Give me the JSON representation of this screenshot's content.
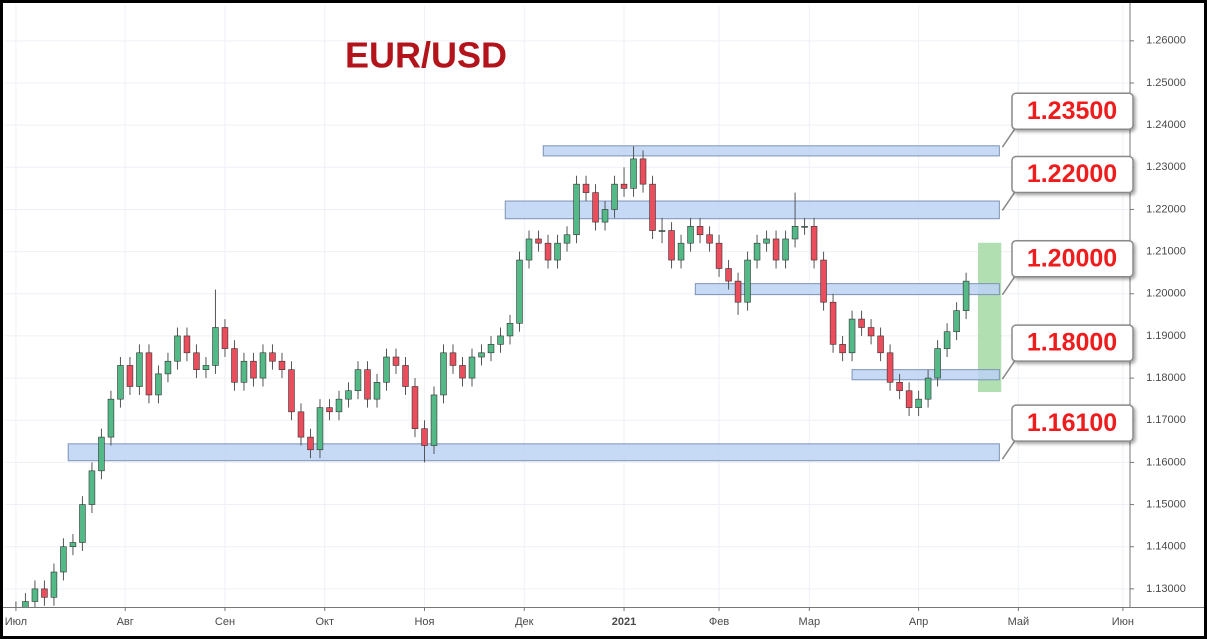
{
  "chart_data": {
    "type": "candlestick",
    "title": "EUR/USD",
    "up_color": "#53b987",
    "down_color": "#eb4d5c",
    "x": [
      0,
      2,
      4,
      6,
      8,
      10,
      12,
      14,
      16,
      18,
      20,
      22,
      24,
      26,
      28,
      30,
      32,
      34,
      36,
      38,
      40,
      42,
      44,
      46,
      48,
      50,
      52,
      54,
      56,
      58,
      60,
      62,
      64,
      66,
      68,
      70,
      72,
      74,
      76,
      78,
      80,
      82,
      84,
      86,
      88,
      90,
      92,
      94,
      96,
      98,
      100,
      102,
      104,
      106,
      108,
      110,
      112,
      114,
      116,
      118,
      120,
      122,
      124,
      126,
      128,
      130,
      132,
      134,
      136,
      138,
      140,
      142,
      144,
      146,
      148,
      150,
      152,
      154,
      156,
      158,
      160,
      162,
      164,
      166,
      168,
      170,
      172,
      174,
      176,
      178,
      180,
      182,
      184,
      186,
      188,
      190,
      192,
      194,
      196,
      198,
      200
    ],
    "open": [
      1.124,
      1.125,
      1.127,
      1.13,
      1.128,
      1.134,
      1.14,
      1.141,
      1.15,
      1.158,
      1.166,
      1.175,
      1.183,
      1.178,
      1.186,
      1.176,
      1.181,
      1.184,
      1.19,
      1.186,
      1.182,
      1.183,
      1.192,
      1.187,
      1.179,
      1.184,
      1.18,
      1.186,
      1.184,
      1.182,
      1.172,
      1.166,
      1.163,
      1.173,
      1.172,
      1.175,
      1.177,
      1.182,
      1.175,
      1.179,
      1.185,
      1.183,
      1.178,
      1.168,
      1.164,
      1.176,
      1.186,
      1.183,
      1.18,
      1.185,
      1.186,
      1.188,
      1.19,
      1.193,
      1.208,
      1.213,
      1.212,
      1.208,
      1.212,
      1.214,
      1.226,
      1.224,
      1.217,
      1.22,
      1.226,
      1.225,
      1.232,
      1.226,
      1.215,
      1.215,
      1.208,
      1.212,
      1.216,
      1.214,
      1.212,
      1.206,
      1.203,
      1.198,
      1.208,
      1.212,
      1.213,
      1.208,
      1.213,
      1.216,
      1.216,
      1.208,
      1.198,
      1.188,
      1.186,
      1.194,
      1.192,
      1.19,
      1.186,
      1.179,
      1.177,
      1.173,
      1.175,
      1.18,
      1.187,
      1.191,
      1.196
    ],
    "high": [
      1.127,
      1.129,
      1.132,
      1.132,
      1.136,
      1.142,
      1.143,
      1.152,
      1.16,
      1.168,
      1.177,
      1.185,
      1.185,
      1.188,
      1.188,
      1.183,
      1.186,
      1.192,
      1.192,
      1.188,
      1.185,
      1.201,
      1.194,
      1.189,
      1.186,
      1.186,
      1.188,
      1.188,
      1.186,
      1.184,
      1.174,
      1.168,
      1.175,
      1.175,
      1.177,
      1.179,
      1.184,
      1.184,
      1.181,
      1.187,
      1.187,
      1.185,
      1.18,
      1.17,
      1.178,
      1.188,
      1.188,
      1.185,
      1.187,
      1.188,
      1.19,
      1.192,
      1.195,
      1.21,
      1.215,
      1.215,
      1.214,
      1.214,
      1.216,
      1.228,
      1.228,
      1.226,
      1.222,
      1.228,
      1.23,
      1.235,
      1.234,
      1.228,
      1.218,
      1.217,
      1.214,
      1.218,
      1.218,
      1.216,
      1.214,
      1.208,
      1.205,
      1.21,
      1.214,
      1.215,
      1.215,
      1.215,
      1.224,
      1.218,
      1.218,
      1.21,
      1.2,
      1.19,
      1.196,
      1.196,
      1.194,
      1.192,
      1.188,
      1.181,
      1.179,
      1.177,
      1.182,
      1.189,
      1.193,
      1.198,
      1.205
    ],
    "low": [
      1.122,
      1.123,
      1.125,
      1.126,
      1.126,
      1.132,
      1.138,
      1.139,
      1.148,
      1.156,
      1.164,
      1.173,
      1.176,
      1.176,
      1.174,
      1.174,
      1.179,
      1.182,
      1.184,
      1.18,
      1.18,
      1.181,
      1.185,
      1.177,
      1.177,
      1.178,
      1.178,
      1.182,
      1.18,
      1.17,
      1.164,
      1.161,
      1.161,
      1.17,
      1.17,
      1.173,
      1.175,
      1.173,
      1.173,
      1.177,
      1.181,
      1.176,
      1.166,
      1.16,
      1.162,
      1.174,
      1.181,
      1.178,
      1.178,
      1.183,
      1.184,
      1.186,
      1.188,
      1.191,
      1.206,
      1.21,
      1.206,
      1.206,
      1.21,
      1.212,
      1.222,
      1.215,
      1.215,
      1.218,
      1.223,
      1.223,
      1.224,
      1.213,
      1.212,
      1.206,
      1.206,
      1.21,
      1.212,
      1.21,
      1.204,
      1.201,
      1.195,
      1.196,
      1.206,
      1.21,
      1.206,
      1.206,
      1.211,
      1.214,
      1.206,
      1.196,
      1.186,
      1.184,
      1.184,
      1.19,
      1.188,
      1.184,
      1.177,
      1.175,
      1.171,
      1.171,
      1.173,
      1.178,
      1.185,
      1.189,
      1.194
    ],
    "close": [
      1.125,
      1.127,
      1.13,
      1.128,
      1.134,
      1.14,
      1.141,
      1.15,
      1.158,
      1.166,
      1.175,
      1.183,
      1.178,
      1.186,
      1.176,
      1.181,
      1.184,
      1.19,
      1.186,
      1.182,
      1.183,
      1.192,
      1.187,
      1.179,
      1.184,
      1.18,
      1.186,
      1.184,
      1.182,
      1.172,
      1.166,
      1.163,
      1.173,
      1.172,
      1.175,
      1.177,
      1.182,
      1.175,
      1.179,
      1.185,
      1.183,
      1.178,
      1.168,
      1.164,
      1.176,
      1.186,
      1.183,
      1.18,
      1.185,
      1.186,
      1.188,
      1.19,
      1.193,
      1.208,
      1.213,
      1.212,
      1.208,
      1.212,
      1.214,
      1.226,
      1.224,
      1.217,
      1.22,
      1.226,
      1.225,
      1.232,
      1.226,
      1.215,
      1.215,
      1.208,
      1.212,
      1.216,
      1.214,
      1.212,
      1.206,
      1.203,
      1.198,
      1.208,
      1.212,
      1.213,
      1.208,
      1.213,
      1.216,
      1.216,
      1.208,
      1.198,
      1.188,
      1.186,
      1.194,
      1.192,
      1.19,
      1.186,
      1.179,
      1.177,
      1.173,
      1.175,
      1.18,
      1.187,
      1.191,
      1.196,
      1.203
    ],
    "xlim": [
      -2.3,
      234.5
    ],
    "xticks": [
      {
        "value": 0,
        "label": "Июл"
      },
      {
        "value": 23,
        "label": "Авг"
      },
      {
        "value": 44,
        "label": "Сен"
      },
      {
        "value": 65,
        "label": "Окт"
      },
      {
        "value": 86,
        "label": "Ноя"
      },
      {
        "value": 107,
        "label": "Дек"
      },
      {
        "value": 128,
        "label": "2021"
      },
      {
        "value": 148,
        "label": "Фев"
      },
      {
        "value": 167,
        "label": "Мар"
      },
      {
        "value": 190,
        "label": "Апр"
      },
      {
        "value": 211,
        "label": "Май"
      },
      {
        "value": 233,
        "label": "Июн"
      }
    ],
    "ylim": [
      1.1257,
      1.2685
    ],
    "yticks": [
      {
        "value": 1.13,
        "label": "1.13000"
      },
      {
        "value": 1.14,
        "label": "1.14000"
      },
      {
        "value": 1.15,
        "label": "1.15000"
      },
      {
        "value": 1.16,
        "label": "1.16000"
      },
      {
        "value": 1.17,
        "label": "1.17000"
      },
      {
        "value": 1.18,
        "label": "1.18000"
      },
      {
        "value": 1.19,
        "label": "1.19000"
      },
      {
        "value": 1.2,
        "label": "1.20000"
      },
      {
        "value": 1.21,
        "label": "1.21000"
      },
      {
        "value": 1.22,
        "label": "1.22000"
      },
      {
        "value": 1.23,
        "label": "1.23000"
      },
      {
        "value": 1.24,
        "label": "1.24000"
      },
      {
        "value": 1.25,
        "label": "1.25000"
      },
      {
        "value": 1.26,
        "label": "1.26000"
      }
    ],
    "grid": true,
    "levels": [
      {
        "value": 1.235,
        "label": "1.23500",
        "zone": [
          1.2327,
          1.2351
        ],
        "x": [
          111,
          207
        ]
      },
      {
        "value": 1.22,
        "label": "1.22000",
        "zone": [
          1.2178,
          1.222
        ],
        "x": [
          103,
          207
        ]
      },
      {
        "value": 1.2,
        "label": "1.20000",
        "zone": [
          1.1998,
          1.2024
        ],
        "x": [
          143,
          207
        ]
      },
      {
        "value": 1.18,
        "label": "1.18000",
        "zone": [
          1.1796,
          1.182
        ],
        "x": [
          176,
          207
        ]
      },
      {
        "value": 1.161,
        "label": "1.16100",
        "zone": [
          1.1604,
          1.1644
        ],
        "x": [
          11,
          207
        ]
      }
    ],
    "zone_color": "#bcd3f5",
    "highlight": {
      "x": [
        202.5,
        207.4
      ],
      "y": [
        1.1767,
        1.2121
      ],
      "color": "#a3d9a5"
    }
  }
}
